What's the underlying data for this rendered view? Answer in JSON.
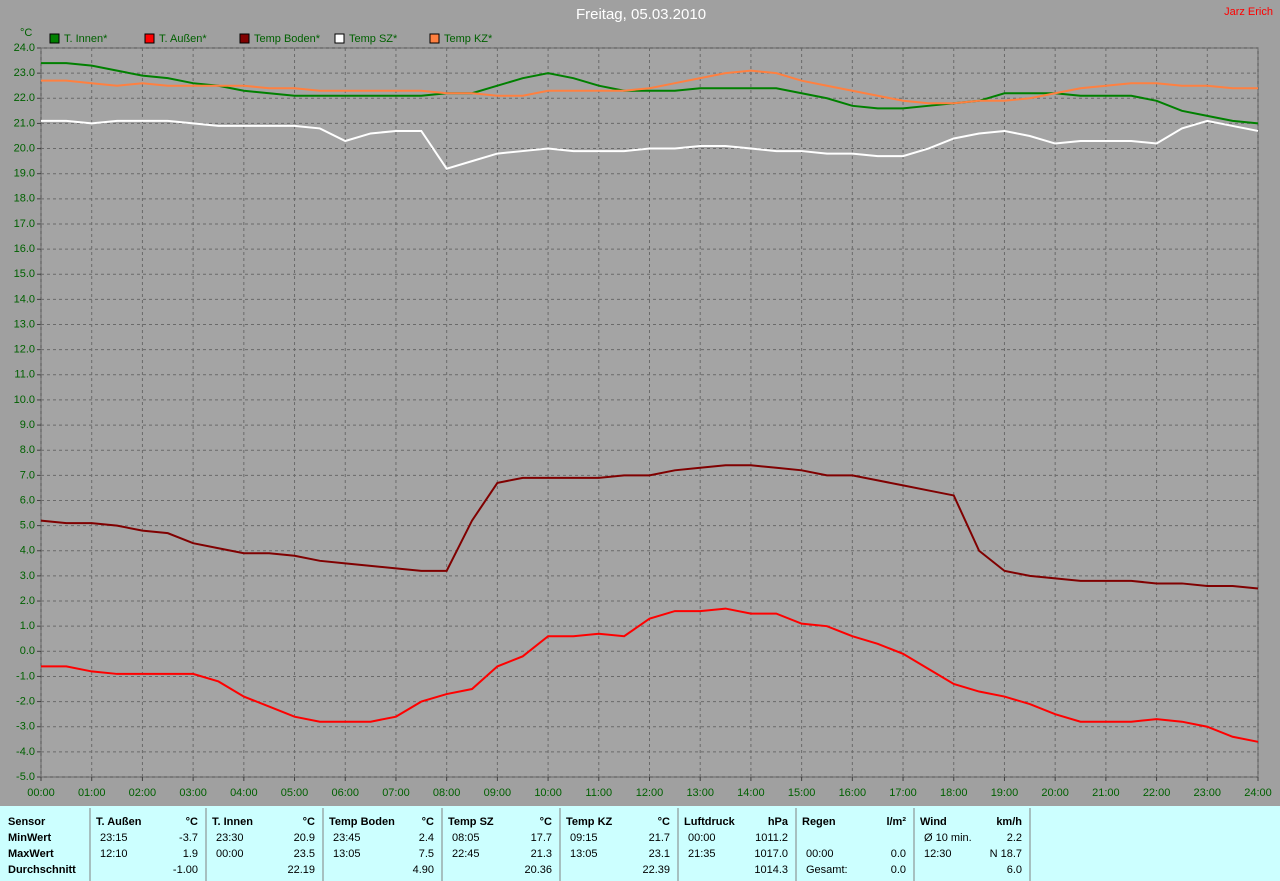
{
  "header": {
    "user": "Jarz Erich"
  },
  "chart_data": {
    "type": "line",
    "title": "Freitag, 05.03.2010",
    "y_unit": "°C",
    "grid": true,
    "x": [
      0,
      0.5,
      1,
      1.5,
      2,
      2.5,
      3,
      3.5,
      4,
      4.5,
      5,
      5.5,
      6,
      6.5,
      7,
      7.5,
      8,
      8.5,
      9,
      9.5,
      10,
      10.5,
      11,
      11.5,
      12,
      12.5,
      13,
      13.5,
      14,
      14.5,
      15,
      15.5,
      16,
      16.5,
      17,
      17.5,
      18,
      18.5,
      19,
      19.5,
      20,
      20.5,
      21,
      21.5,
      22,
      22.5,
      23,
      23.5,
      24
    ],
    "xlim": [
      0,
      24
    ],
    "xticks": [
      {
        "value": 0,
        "label": "00:00"
      },
      {
        "value": 1,
        "label": "01:00"
      },
      {
        "value": 2,
        "label": "02:00"
      },
      {
        "value": 3,
        "label": "03:00"
      },
      {
        "value": 4,
        "label": "04:00"
      },
      {
        "value": 5,
        "label": "05:00"
      },
      {
        "value": 6,
        "label": "06:00"
      },
      {
        "value": 7,
        "label": "07:00"
      },
      {
        "value": 8,
        "label": "08:00"
      },
      {
        "value": 9,
        "label": "09:00"
      },
      {
        "value": 10,
        "label": "10:00"
      },
      {
        "value": 11,
        "label": "11:00"
      },
      {
        "value": 12,
        "label": "12:00"
      },
      {
        "value": 13,
        "label": "13:00"
      },
      {
        "value": 14,
        "label": "14:00"
      },
      {
        "value": 15,
        "label": "15:00"
      },
      {
        "value": 16,
        "label": "16:00"
      },
      {
        "value": 17,
        "label": "17:00"
      },
      {
        "value": 18,
        "label": "18:00"
      },
      {
        "value": 19,
        "label": "19:00"
      },
      {
        "value": 20,
        "label": "20:00"
      },
      {
        "value": 21,
        "label": "21:00"
      },
      {
        "value": 22,
        "label": "22:00"
      },
      {
        "value": 23,
        "label": "23:00"
      },
      {
        "value": 24,
        "label": "24:00"
      }
    ],
    "ylim": [
      -5,
      24
    ],
    "yticks": [
      {
        "value": -5,
        "label": "-5.0"
      },
      {
        "value": -4,
        "label": "-4.0"
      },
      {
        "value": -3,
        "label": "-3.0"
      },
      {
        "value": -2,
        "label": "-2.0"
      },
      {
        "value": -1,
        "label": "-1.0"
      },
      {
        "value": 0,
        "label": "0.0"
      },
      {
        "value": 1,
        "label": "1.0"
      },
      {
        "value": 2,
        "label": "2.0"
      },
      {
        "value": 3,
        "label": "3.0"
      },
      {
        "value": 4,
        "label": "4.0"
      },
      {
        "value": 5,
        "label": "5.0"
      },
      {
        "value": 6,
        "label": "6.0"
      },
      {
        "value": 7,
        "label": "7.0"
      },
      {
        "value": 8,
        "label": "8.0"
      },
      {
        "value": 9,
        "label": "9.0"
      },
      {
        "value": 10,
        "label": "10.0"
      },
      {
        "value": 11,
        "label": "11.0"
      },
      {
        "value": 12,
        "label": "12.0"
      },
      {
        "value": 13,
        "label": "13.0"
      },
      {
        "value": 14,
        "label": "14.0"
      },
      {
        "value": 15,
        "label": "15.0"
      },
      {
        "value": 16,
        "label": "16.0"
      },
      {
        "value": 17,
        "label": "17.0"
      },
      {
        "value": 18,
        "label": "18.0"
      },
      {
        "value": 19,
        "label": "19.0"
      },
      {
        "value": 20,
        "label": "20.0"
      },
      {
        "value": 21,
        "label": "21.0"
      },
      {
        "value": 22,
        "label": "22.0"
      },
      {
        "value": 23,
        "label": "23.0"
      },
      {
        "value": 24,
        "label": "24.0"
      }
    ],
    "series": [
      {
        "name": "T. Innen*",
        "color": "#008000",
        "values": [
          23.4,
          23.4,
          23.3,
          23.1,
          22.9,
          22.8,
          22.6,
          22.5,
          22.3,
          22.2,
          22.1,
          22.1,
          22.1,
          22.1,
          22.1,
          22.1,
          22.2,
          22.2,
          22.5,
          22.8,
          23.0,
          22.8,
          22.5,
          22.3,
          22.3,
          22.3,
          22.4,
          22.4,
          22.4,
          22.4,
          22.2,
          22.0,
          21.7,
          21.6,
          21.6,
          21.7,
          21.8,
          21.9,
          22.2,
          22.2,
          22.2,
          22.1,
          22.1,
          22.1,
          21.9,
          21.5,
          21.3,
          21.1,
          21.0
        ]
      },
      {
        "name": "T. Außen*",
        "color": "#ff0000",
        "values": [
          -0.6,
          -0.6,
          -0.8,
          -0.9,
          -0.9,
          -0.9,
          -0.9,
          -1.2,
          -1.8,
          -2.2,
          -2.6,
          -2.8,
          -2.8,
          -2.8,
          -2.6,
          -2.0,
          -1.7,
          -1.5,
          -0.6,
          -0.2,
          0.6,
          0.6,
          0.7,
          0.6,
          1.3,
          1.6,
          1.6,
          1.7,
          1.5,
          1.5,
          1.1,
          1.0,
          0.6,
          0.3,
          -0.1,
          -0.7,
          -1.3,
          -1.6,
          -1.8,
          -2.1,
          -2.5,
          -2.8,
          -2.8,
          -2.8,
          -2.7,
          -2.8,
          -3.0,
          -3.4,
          -3.6
        ]
      },
      {
        "name": "Temp Boden*",
        "color": "#800000",
        "values": [
          5.2,
          5.1,
          5.1,
          5.0,
          4.8,
          4.7,
          4.3,
          4.1,
          3.9,
          3.9,
          3.8,
          3.6,
          3.5,
          3.4,
          3.3,
          3.2,
          3.2,
          5.2,
          6.7,
          6.9,
          6.9,
          6.9,
          6.9,
          7.0,
          7.0,
          7.2,
          7.3,
          7.4,
          7.4,
          7.3,
          7.2,
          7.0,
          7.0,
          6.8,
          6.6,
          6.4,
          6.2,
          4.0,
          3.2,
          3.0,
          2.9,
          2.8,
          2.8,
          2.8,
          2.7,
          2.7,
          2.6,
          2.6,
          2.5
        ]
      },
      {
        "name": "Temp SZ*",
        "color": "#ffffff",
        "values": [
          21.1,
          21.1,
          21.0,
          21.1,
          21.1,
          21.1,
          21.0,
          20.9,
          20.9,
          20.9,
          20.9,
          20.8,
          20.3,
          20.6,
          20.7,
          20.7,
          19.2,
          19.5,
          19.8,
          19.9,
          20.0,
          19.9,
          19.9,
          19.9,
          20.0,
          20.0,
          20.1,
          20.1,
          20.0,
          19.9,
          19.9,
          19.8,
          19.8,
          19.7,
          19.7,
          20.0,
          20.4,
          20.6,
          20.7,
          20.5,
          20.2,
          20.3,
          20.3,
          20.3,
          20.2,
          20.8,
          21.1,
          20.9,
          20.7
        ]
      },
      {
        "name": "Temp KZ*",
        "color": "#ff8040",
        "values": [
          22.7,
          22.7,
          22.6,
          22.5,
          22.6,
          22.5,
          22.5,
          22.5,
          22.5,
          22.4,
          22.4,
          22.3,
          22.3,
          22.3,
          22.3,
          22.3,
          22.2,
          22.2,
          22.1,
          22.1,
          22.3,
          22.3,
          22.3,
          22.3,
          22.4,
          22.6,
          22.8,
          23.0,
          23.1,
          23.0,
          22.7,
          22.5,
          22.3,
          22.1,
          21.9,
          21.8,
          21.8,
          21.9,
          21.9,
          22.0,
          22.2,
          22.4,
          22.5,
          22.6,
          22.6,
          22.5,
          22.5,
          22.4,
          22.4
        ]
      }
    ]
  },
  "table": {
    "corner": "Sensor",
    "columns": [
      {
        "name": "T. Außen",
        "unit": "°C"
      },
      {
        "name": "T. Innen",
        "unit": "°C"
      },
      {
        "name": "Temp Boden",
        "unit": "°C"
      },
      {
        "name": "Temp SZ",
        "unit": "°C"
      },
      {
        "name": "Temp KZ",
        "unit": "°C"
      },
      {
        "name": "Luftdruck",
        "unit": "hPa"
      },
      {
        "name": "Regen",
        "unit": "l/m²"
      },
      {
        "name": "Wind",
        "unit": "km/h"
      }
    ],
    "rows": [
      {
        "label": "MinWert",
        "cells": [
          {
            "time": "23:15",
            "value": "-3.7"
          },
          {
            "time": "23:30",
            "value": "20.9"
          },
          {
            "time": "23:45",
            "value": "2.4"
          },
          {
            "time": "08:05",
            "value": "17.7"
          },
          {
            "time": "09:15",
            "value": "21.7"
          },
          {
            "time": "00:00",
            "value": "1011.2"
          },
          {},
          {
            "time": "Ø 10 min.",
            "value": "2.2"
          }
        ]
      },
      {
        "label": "MaxWert",
        "cells": [
          {
            "time": "12:10",
            "value": "1.9"
          },
          {
            "time": "00:00",
            "value": "23.5"
          },
          {
            "time": "13:05",
            "value": "7.5"
          },
          {
            "time": "22:45",
            "value": "21.3"
          },
          {
            "time": "13:05",
            "value": "23.1"
          },
          {
            "time": "21:35",
            "value": "1017.0"
          },
          {
            "time": "00:00",
            "value": "0.0"
          },
          {
            "time": "12:30",
            "value": "N 18.7"
          }
        ]
      },
      {
        "label": "Durchschnitt",
        "cells": [
          {
            "value": "-1.00"
          },
          {
            "value": "22.19"
          },
          {
            "value": "4.90"
          },
          {
            "value": "20.36"
          },
          {
            "value": "22.39"
          },
          {
            "value": "1014.3"
          },
          {
            "time": "Gesamt:",
            "value": "0.0"
          },
          {
            "value": "6.0"
          }
        ]
      }
    ]
  }
}
